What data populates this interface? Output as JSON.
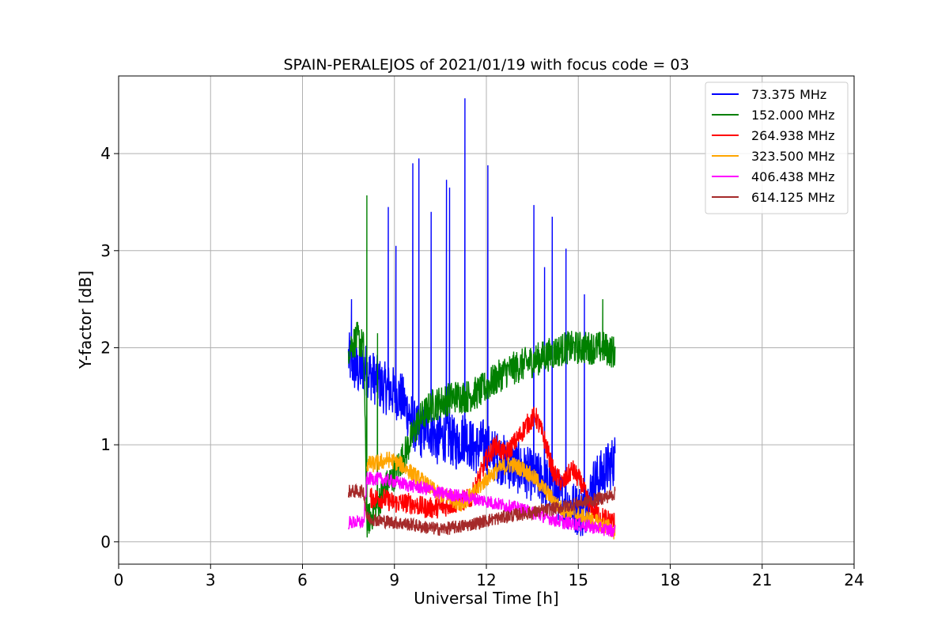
{
  "chart_data": {
    "type": "line",
    "title": "SPAIN-PERALEJOS of 2021/01/19 with focus code = 03",
    "xlabel": "Universal Time [h]",
    "ylabel": "Y-factor [dB]",
    "xlim": [
      0,
      24
    ],
    "ylim": [
      -0.23,
      4.8
    ],
    "xticks": [
      0,
      3,
      6,
      9,
      12,
      15,
      18,
      21,
      24
    ],
    "yticks": [
      0,
      1,
      2,
      3,
      4
    ],
    "grid": true,
    "legend_position": "top-right",
    "series": [
      {
        "name": " 73.375 MHz",
        "color": "#0000ff",
        "x": [
          7.5,
          7.8,
          8.0,
          8.3,
          8.6,
          8.9,
          9.2,
          9.5,
          9.8,
          10.1,
          10.4,
          10.7,
          11.0,
          11.3,
          11.6,
          11.9,
          12.2,
          12.5,
          12.8,
          13.1,
          13.4,
          13.7,
          14.0,
          14.3,
          14.6,
          14.9,
          15.2,
          15.5,
          15.8,
          16.2
        ],
        "y": [
          1.9,
          1.75,
          1.8,
          1.7,
          1.6,
          1.55,
          1.5,
          1.3,
          1.1,
          1.2,
          1.05,
          1.1,
          1.0,
          1.1,
          0.95,
          1.0,
          0.9,
          0.85,
          0.8,
          0.75,
          0.7,
          0.65,
          0.6,
          0.5,
          0.4,
          0.35,
          0.3,
          0.6,
          0.7,
          0.85
        ],
        "spikes": [
          {
            "x": 7.6,
            "y": 2.5
          },
          {
            "x": 8.8,
            "y": 3.45
          },
          {
            "x": 9.05,
            "y": 3.05
          },
          {
            "x": 9.6,
            "y": 3.9
          },
          {
            "x": 9.8,
            "y": 3.95
          },
          {
            "x": 10.2,
            "y": 3.4
          },
          {
            "x": 10.7,
            "y": 3.73
          },
          {
            "x": 10.8,
            "y": 3.65
          },
          {
            "x": 11.3,
            "y": 4.57
          },
          {
            "x": 12.05,
            "y": 3.88
          },
          {
            "x": 13.55,
            "y": 3.47
          },
          {
            "x": 14.15,
            "y": 3.35
          },
          {
            "x": 14.6,
            "y": 3.02
          },
          {
            "x": 13.9,
            "y": 2.83
          },
          {
            "x": 15.2,
            "y": 2.55
          }
        ]
      },
      {
        "name": "152.000 MHz",
        "color": "#008000",
        "x": [
          7.5,
          7.8,
          8.0,
          8.1,
          8.3,
          8.6,
          9.0,
          9.4,
          9.8,
          10.2,
          10.6,
          11.0,
          11.4,
          11.8,
          12.2,
          12.6,
          13.0,
          13.4,
          13.8,
          14.2,
          14.6,
          15.0,
          15.4,
          15.8,
          16.2
        ],
        "y": [
          2.0,
          2.1,
          2.0,
          0.2,
          0.3,
          0.5,
          0.7,
          0.95,
          1.25,
          1.4,
          1.45,
          1.5,
          1.5,
          1.55,
          1.65,
          1.75,
          1.8,
          1.85,
          1.9,
          1.95,
          2.0,
          2.0,
          2.0,
          2.0,
          1.95
        ],
        "spikes": [
          {
            "x": 8.1,
            "y": 3.57
          },
          {
            "x": 8.45,
            "y": 2.15
          },
          {
            "x": 15.8,
            "y": 2.5
          }
        ]
      },
      {
        "name": "264.938 MHz",
        "color": "#ff0000",
        "x": [
          8.2,
          8.6,
          9.0,
          9.5,
          10.0,
          10.5,
          11.0,
          11.5,
          12.0,
          12.3,
          12.6,
          13.0,
          13.3,
          13.6,
          13.9,
          14.2,
          14.5,
          14.8,
          15.1,
          15.4,
          15.8,
          16.2
        ],
        "y": [
          0.45,
          0.45,
          0.4,
          0.4,
          0.35,
          0.35,
          0.4,
          0.45,
          0.85,
          1.0,
          0.9,
          1.05,
          1.2,
          1.3,
          1.05,
          0.7,
          0.6,
          0.75,
          0.6,
          0.35,
          0.25,
          0.2
        ]
      },
      {
        "name": "323.500 MHz",
        "color": "#ffa500",
        "x": [
          8.1,
          8.4,
          8.8,
          9.2,
          9.6,
          10.0,
          10.4,
          10.8,
          11.2,
          11.6,
          12.0,
          12.4,
          12.8,
          13.2,
          13.6,
          14.0,
          14.4,
          14.8,
          15.2,
          15.6,
          16.0,
          16.2
        ],
        "y": [
          0.8,
          0.8,
          0.85,
          0.8,
          0.7,
          0.6,
          0.5,
          0.45,
          0.4,
          0.5,
          0.65,
          0.75,
          0.8,
          0.75,
          0.65,
          0.5,
          0.35,
          0.3,
          0.25,
          0.2,
          0.15,
          0.1
        ]
      },
      {
        "name": "406.438 MHz",
        "color": "#ff00ff",
        "x": [
          7.5,
          7.8,
          8.0,
          8.1,
          8.5,
          9.0,
          9.5,
          10.0,
          10.5,
          11.0,
          11.5,
          12.0,
          12.5,
          13.0,
          13.5,
          14.0,
          14.5,
          15.0,
          15.5,
          16.0,
          16.2
        ],
        "y": [
          0.2,
          0.2,
          0.2,
          0.65,
          0.65,
          0.62,
          0.58,
          0.55,
          0.5,
          0.48,
          0.45,
          0.42,
          0.38,
          0.35,
          0.3,
          0.25,
          0.2,
          0.18,
          0.15,
          0.12,
          0.12
        ]
      },
      {
        "name": "614.125 MHz",
        "color": "#a52a2a",
        "x": [
          7.5,
          7.8,
          8.0,
          8.1,
          8.5,
          9.0,
          9.5,
          10.0,
          10.5,
          11.0,
          11.5,
          12.0,
          12.5,
          13.0,
          13.5,
          14.0,
          14.5,
          15.0,
          15.5,
          16.0,
          16.2
        ],
        "y": [
          0.52,
          0.52,
          0.52,
          0.25,
          0.22,
          0.2,
          0.18,
          0.15,
          0.13,
          0.15,
          0.18,
          0.22,
          0.25,
          0.28,
          0.3,
          0.33,
          0.36,
          0.4,
          0.43,
          0.47,
          0.5
        ]
      }
    ]
  }
}
